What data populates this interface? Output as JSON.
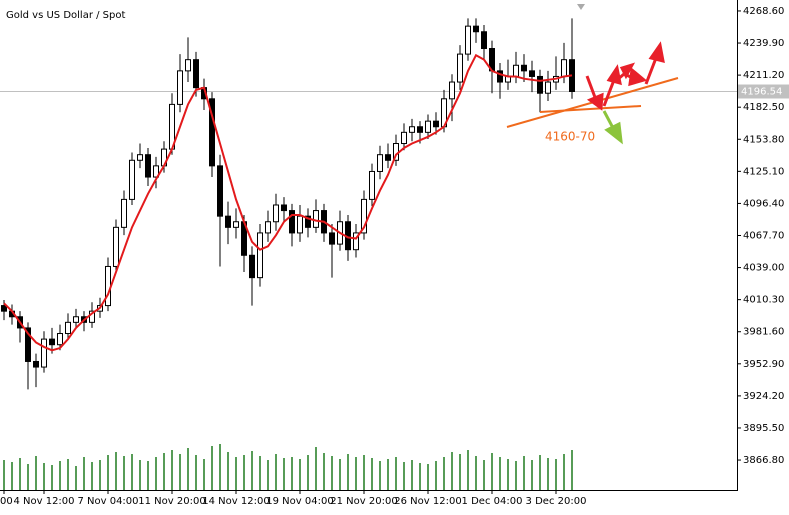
{
  "chart_data": {
    "type": "candlestick",
    "title": "Gold vs US Dollar / Spot",
    "categories": [
      "00",
      null,
      null,
      null,
      null,
      "4 Nov 12:00",
      null,
      null,
      null,
      null,
      null,
      null,
      null,
      "7 Nov 04:00",
      null,
      null,
      null,
      null,
      null,
      null,
      null,
      "11 Nov 20:00",
      null,
      null,
      null,
      null,
      null,
      null,
      null,
      "14 Nov 12:00",
      null,
      null,
      null,
      null,
      null,
      null,
      null,
      "19 Nov 04:00",
      null,
      null,
      null,
      null,
      null,
      null,
      null,
      "21 Nov 20:00",
      null,
      null,
      null,
      null,
      null,
      null,
      null,
      "26 Nov 12:00",
      null,
      null,
      null,
      null,
      null,
      null,
      null,
      "1 Dec 04:00",
      null,
      null,
      null,
      null,
      null,
      null,
      null,
      "3 Dec 20:00",
      null,
      null
    ],
    "open": [
      4005,
      4000,
      3995,
      3985,
      3955,
      3950,
      3975,
      3970,
      3980,
      3990,
      3995,
      3990,
      4000,
      4005,
      4040,
      4075,
      4100,
      4135,
      4140,
      4120,
      4130,
      4145,
      4185,
      4215,
      4225,
      4200,
      4190,
      4130,
      4085,
      4075,
      4080,
      4050,
      4030,
      4070,
      4080,
      4095,
      4090,
      4070,
      4085,
      4075,
      4090,
      4070,
      4060,
      4080,
      4055,
      4070,
      4100,
      4125,
      4140,
      4135,
      4150,
      4160,
      4165,
      4160,
      4170,
      4165,
      4190,
      4205,
      4230,
      4255,
      4250,
      4235,
      4215,
      4205,
      4210,
      4220,
      4215,
      4210,
      4195,
      4205,
      4210,
      4225
    ],
    "high": [
      4010,
      4006,
      4000,
      3990,
      3962,
      3982,
      3985,
      3988,
      3998,
      4002,
      4000,
      4008,
      4012,
      4048,
      4082,
      4108,
      4142,
      4150,
      4146,
      4138,
      4152,
      4195,
      4230,
      4245,
      4232,
      4208,
      4196,
      4140,
      4098,
      4092,
      4086,
      4058,
      4078,
      4090,
      4105,
      4102,
      4096,
      4095,
      4092,
      4100,
      4096,
      4078,
      4090,
      4086,
      4078,
      4108,
      4132,
      4148,
      4150,
      4158,
      4168,
      4172,
      4170,
      4176,
      4178,
      4198,
      4212,
      4238,
      4262,
      4262,
      4256,
      4242,
      4222,
      4225,
      4232,
      4230,
      4224,
      4216,
      4215,
      4228,
      4240,
      4262
    ],
    "low": [
      3992,
      3988,
      3972,
      3930,
      3932,
      3945,
      3962,
      3965,
      3975,
      3984,
      3982,
      3985,
      3994,
      4000,
      4035,
      4068,
      4095,
      4128,
      4112,
      4110,
      4124,
      4140,
      4178,
      4205,
      4192,
      4180,
      4120,
      4040,
      4060,
      4065,
      4035,
      4005,
      4022,
      4062,
      4072,
      4080,
      4058,
      4062,
      4066,
      4070,
      4062,
      4030,
      4054,
      4045,
      4048,
      4064,
      4094,
      4118,
      4128,
      4130,
      4144,
      4152,
      4150,
      4154,
      4158,
      4160,
      4170,
      4198,
      4224,
      4240,
      4225,
      4195,
      4190,
      4198,
      4204,
      4205,
      4196,
      4178,
      4188,
      4198,
      4204,
      4190
    ],
    "close": [
      4000,
      3995,
      3985,
      3955,
      3950,
      3975,
      3970,
      3980,
      3990,
      3995,
      3990,
      4000,
      4005,
      4040,
      4075,
      4100,
      4135,
      4140,
      4120,
      4130,
      4145,
      4185,
      4215,
      4225,
      4200,
      4190,
      4130,
      4085,
      4075,
      4080,
      4050,
      4030,
      4070,
      4080,
      4095,
      4090,
      4070,
      4085,
      4075,
      4090,
      4070,
      4060,
      4080,
      4055,
      4070,
      4100,
      4125,
      4140,
      4135,
      4150,
      4160,
      4165,
      4160,
      4170,
      4165,
      4190,
      4205,
      4230,
      4255,
      4250,
      4235,
      4215,
      4205,
      4210,
      4220,
      4215,
      4210,
      4195,
      4205,
      4210,
      4225,
      4196.54
    ],
    "up_color": "#ffffff",
    "down_color": "#000000",
    "moving_average": {
      "color": "#e31a1c",
      "values": [
        4007,
        4000,
        3990,
        3980,
        3972,
        3968,
        3965,
        3967,
        3975,
        3985,
        3992,
        3998,
        4003,
        4015,
        4035,
        4055,
        4075,
        4090,
        4105,
        4118,
        4130,
        4145,
        4165,
        4185,
        4198,
        4200,
        4175,
        4150,
        4125,
        4100,
        4080,
        4062,
        4055,
        4058,
        4068,
        4080,
        4086,
        4086,
        4083,
        4081,
        4080,
        4075,
        4070,
        4066,
        4065,
        4075,
        4092,
        4108,
        4122,
        4140,
        4146,
        4150,
        4153,
        4156,
        4160,
        4165,
        4180,
        4195,
        4215,
        4229,
        4225,
        4215,
        4212,
        4210,
        4210,
        4208,
        4207,
        4206,
        4207,
        4208,
        4210,
        4211
      ]
    },
    "volume": {
      "color": "#1f7a1f",
      "values": [
        30,
        28,
        32,
        26,
        34,
        27,
        25,
        29,
        31,
        24,
        33,
        28,
        30,
        35,
        38,
        34,
        36,
        30,
        29,
        33,
        37,
        40,
        36,
        42,
        35,
        31,
        44,
        46,
        38,
        33,
        35,
        39,
        34,
        30,
        36,
        32,
        33,
        31,
        35,
        43,
        37,
        34,
        31,
        36,
        33,
        35,
        32,
        29,
        31,
        33,
        28,
        30,
        27,
        26,
        29,
        33,
        38,
        36,
        40,
        34,
        30,
        37,
        33,
        31,
        29,
        34,
        30,
        35,
        32,
        31,
        36,
        40
      ]
    },
    "current_price": 4196.54,
    "annotation": "4160-70",
    "ylim": [
      3840,
      4278.4
    ],
    "yticks": [
      {
        "value": 4268.6,
        "label": "4268.60"
      },
      {
        "value": 4239.9,
        "label": "4239.90"
      },
      {
        "value": 4211.2,
        "label": "4211.20"
      },
      {
        "value": 4182.5,
        "label": "4182.50"
      },
      {
        "value": 4153.8,
        "label": "4153.80"
      },
      {
        "value": 4125.1,
        "label": "4125.10"
      },
      {
        "value": 4096.4,
        "label": "4096.40"
      },
      {
        "value": 4067.7,
        "label": "4067.70"
      },
      {
        "value": 4039,
        "label": "4039.00"
      },
      {
        "value": 4010.3,
        "label": "4010.30"
      },
      {
        "value": 3981.6,
        "label": "3981.60"
      },
      {
        "value": 3952.9,
        "label": "3952.90"
      },
      {
        "value": 3924.2,
        "label": "3924.20"
      },
      {
        "value": 3895.5,
        "label": "3895.50"
      },
      {
        "value": 3866.8,
        "label": "3866.80"
      }
    ]
  }
}
